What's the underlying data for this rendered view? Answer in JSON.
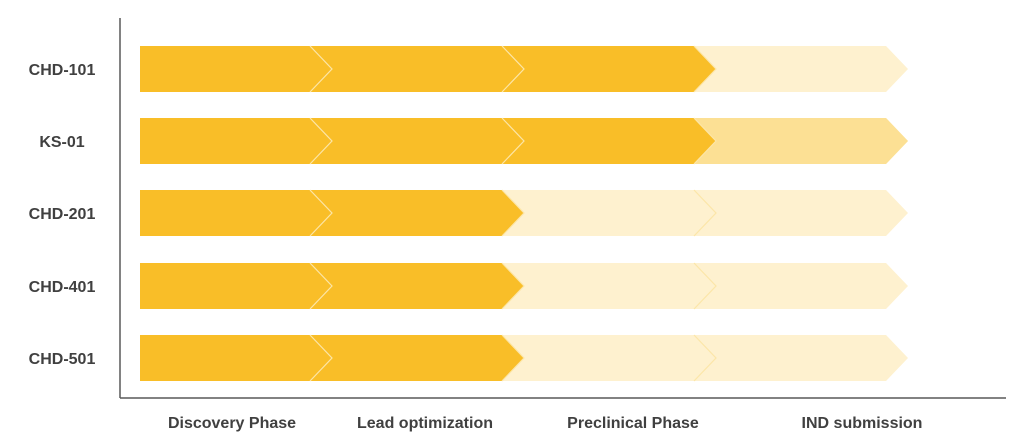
{
  "chart_data": {
    "type": "bar",
    "title": "",
    "categories": [
      "CHD-101",
      "KS-01",
      "CHD-201",
      "CHD-401",
      "CHD-501"
    ],
    "phases": [
      "Discovery Phase",
      "Lead optimization",
      "Preclinical Phase",
      "IND submission"
    ],
    "series": [
      {
        "values": [
          3,
          3,
          2,
          2,
          2
        ]
      },
      {
        "values": [
          0,
          1,
          0,
          0,
          0
        ]
      }
    ],
    "xlim": [
      0,
      4
    ],
    "grid": false,
    "legend": "none",
    "colors": {
      "completed": "#F9BE28",
      "in_progress": "#FCE094",
      "remaining": "#FEF1CF",
      "axis": "#595959",
      "divider": "#FCE6A8",
      "text": "#404040"
    }
  }
}
